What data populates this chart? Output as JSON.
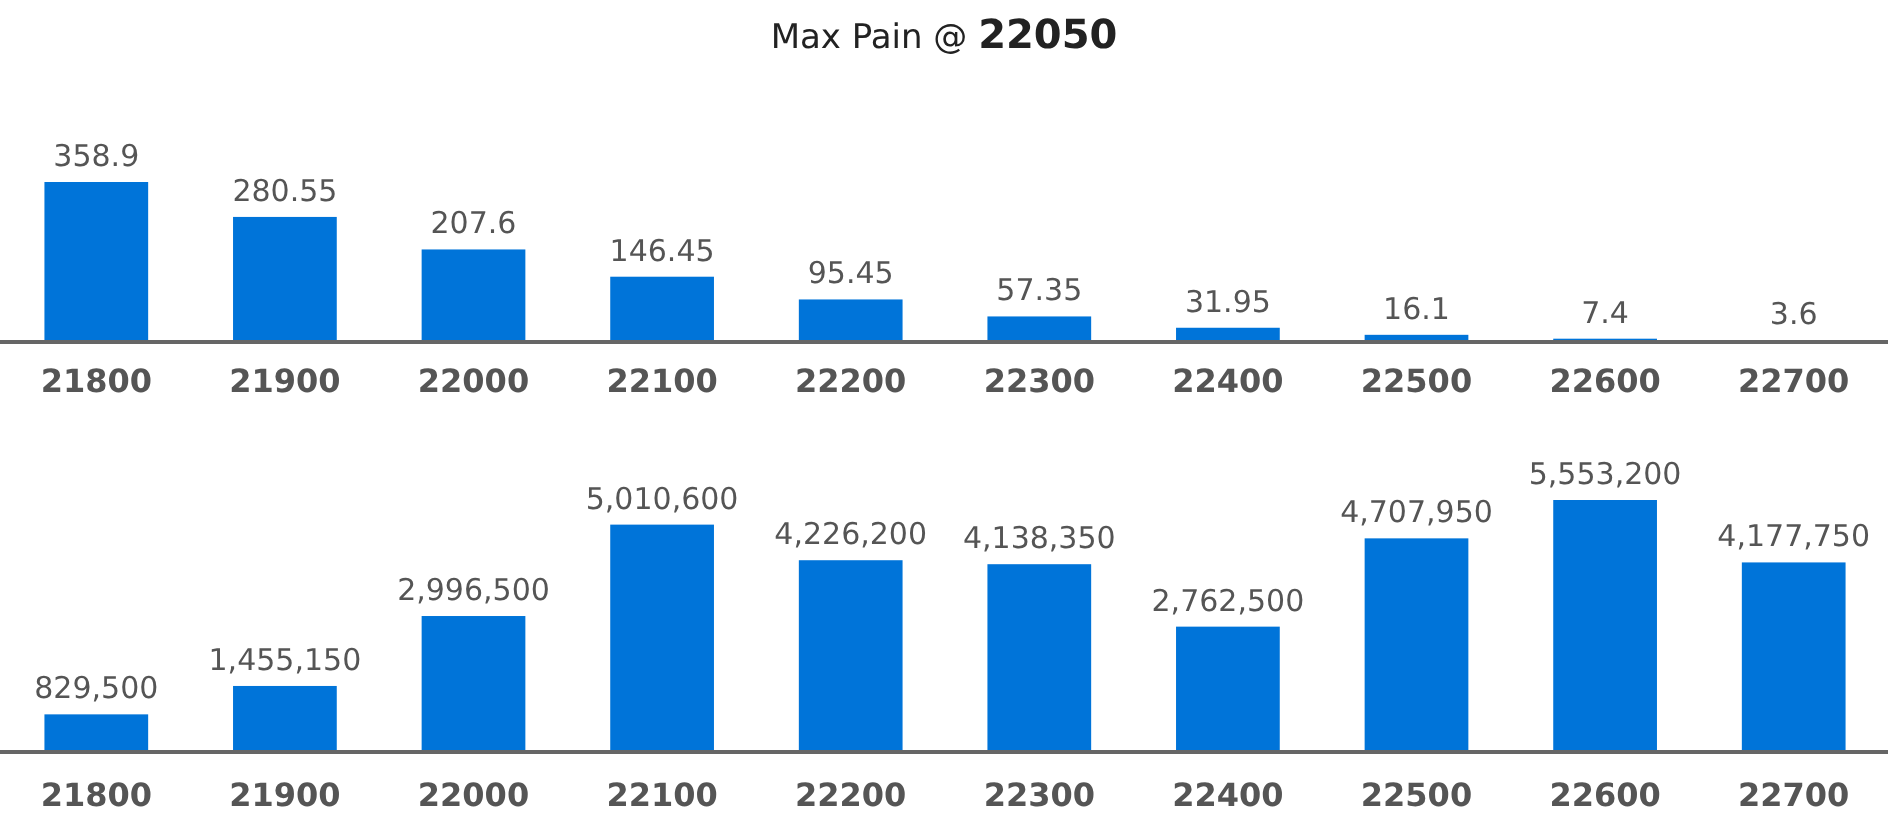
{
  "chart_data": [
    {
      "type": "bar",
      "title": "Max Pain @ 22050",
      "categories": [
        "21800",
        "21900",
        "22000",
        "22100",
        "22200",
        "22300",
        "22400",
        "22500",
        "22600",
        "22700"
      ],
      "values": [
        358.9,
        280.55,
        207.6,
        146.45,
        95.45,
        57.35,
        31.95,
        16.1,
        7.4,
        3.6
      ],
      "color": "#0074d9",
      "tick_labels": "x",
      "data_labels": true
    },
    {
      "type": "bar",
      "categories": [
        "21800",
        "21900",
        "22000",
        "22100",
        "22200",
        "22300",
        "22400",
        "22500",
        "22600",
        "22700"
      ],
      "values": [
        829500,
        1455150,
        2996500,
        5010600,
        4226200,
        4138350,
        2762500,
        4707950,
        5553200,
        4177750
      ],
      "value_labels": [
        "829,500",
        "1,455,150",
        "2,996,500",
        "5,010,600",
        "4,226,200",
        "4,138,350",
        "2,762,500",
        "4,707,950",
        "5,553,200",
        "4,177,750"
      ],
      "color": "#0074d9",
      "tick_labels": "x"
    }
  ]
}
